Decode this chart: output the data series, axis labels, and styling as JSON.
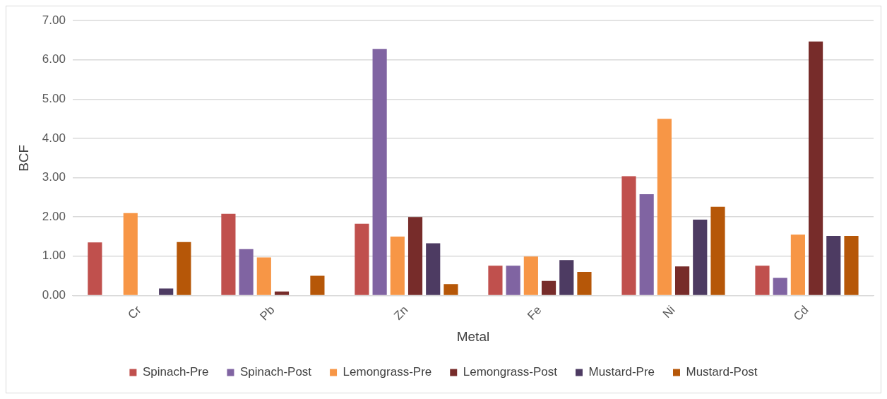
{
  "chart_data": {
    "type": "bar",
    "xlabel": "Metal",
    "ylabel": "BCF",
    "categories": [
      "Cr",
      "Pb",
      "Zn",
      "Fe",
      "Ni",
      "Cd"
    ],
    "series": [
      {
        "name": "Spinach-Pre",
        "color": "#c0504d",
        "values": [
          1.35,
          2.08,
          1.83,
          0.76,
          3.04,
          0.76
        ]
      },
      {
        "name": "Spinach-Post",
        "color": "#8064a2",
        "values": [
          0,
          1.18,
          6.28,
          0.76,
          2.58,
          0.45
        ]
      },
      {
        "name": "Lemongrass-Pre",
        "color": "#f79646",
        "values": [
          2.1,
          0.97,
          1.5,
          0.99,
          4.5,
          1.55
        ]
      },
      {
        "name": "Lemongrass-Post",
        "color": "#772c2a",
        "values": [
          0,
          0.1,
          2.0,
          0.37,
          0.74,
          6.47
        ]
      },
      {
        "name": "Mustard-Pre",
        "color": "#4d3b62",
        "values": [
          0.18,
          0,
          1.33,
          0.9,
          1.93,
          1.52
        ]
      },
      {
        "name": "Mustard-Post",
        "color": "#b65708",
        "values": [
          1.36,
          0.5,
          0.29,
          0.6,
          2.26,
          1.52
        ]
      }
    ],
    "ylim": [
      0,
      7
    ],
    "yticks": [
      {
        "value": 0,
        "label": "0.00"
      },
      {
        "value": 1,
        "label": "1.00"
      },
      {
        "value": 2,
        "label": "2.00"
      },
      {
        "value": 3,
        "label": "3.00"
      },
      {
        "value": 4,
        "label": "4.00"
      },
      {
        "value": 5,
        "label": "5.00"
      },
      {
        "value": 6,
        "label": "6.00"
      },
      {
        "value": 7,
        "label": "7.00"
      }
    ],
    "grid": "y",
    "legend": "bottom"
  }
}
